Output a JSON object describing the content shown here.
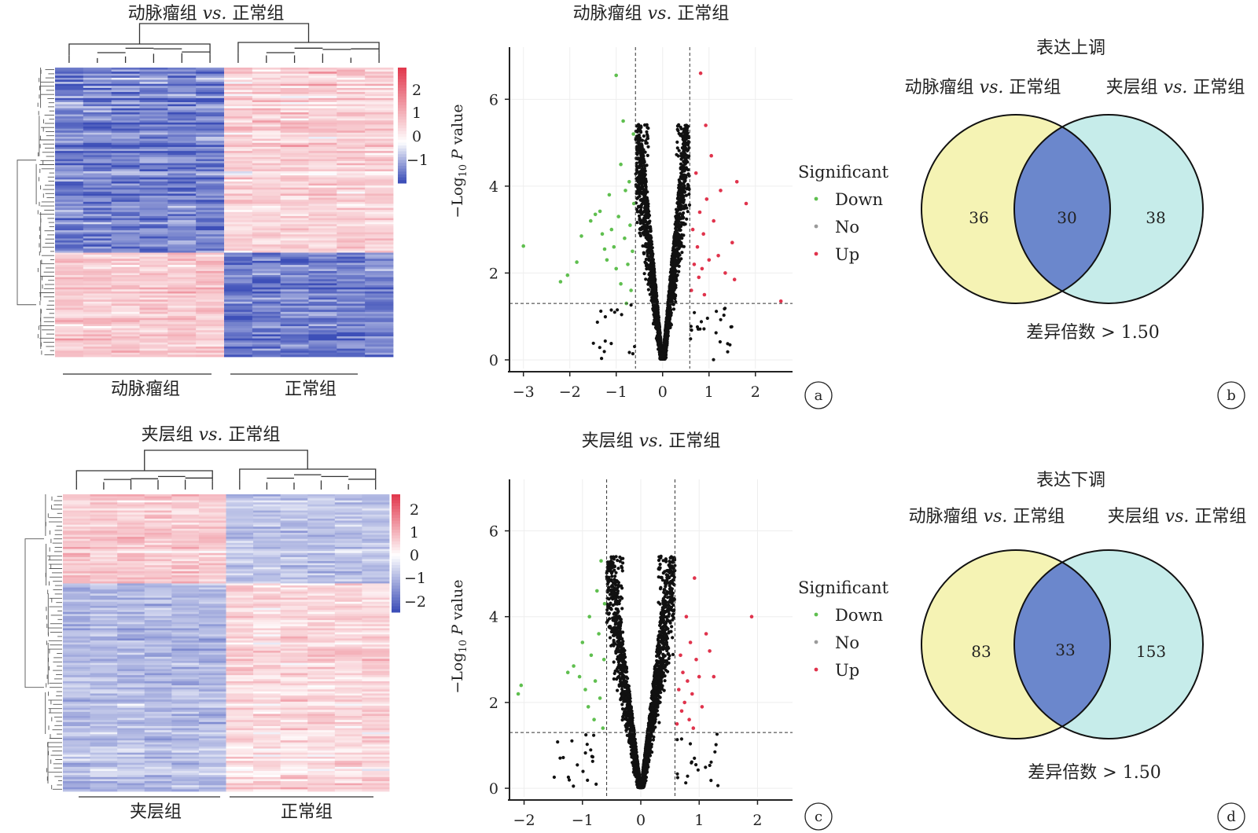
{
  "panels": {
    "a": {
      "letter": "a",
      "heatmap": {
        "title_prefix": "动脉瘤组 ",
        "title_vs": "vs.",
        "title_suffix": " 正常组",
        "colorbar_ticks": [
          "2",
          "1",
          "0",
          "−1"
        ],
        "groups": [
          "动脉瘤组",
          "正常组"
        ]
      },
      "volcano": {
        "title_prefix": "动脉瘤组 ",
        "title_vs": "vs.",
        "title_suffix": " 正常组",
        "x_ticks": [
          "−3",
          "−2",
          "−1",
          "0",
          "1",
          "2"
        ],
        "y_ticks": [
          "0",
          "2",
          "4",
          "6"
        ],
        "ylabel_a": "−Log",
        "ylabel_sub": "10",
        "ylabel_b": " ",
        "ylabel_p": "P",
        "ylabel_c": " value"
      },
      "legend": {
        "title": "Significant",
        "items": [
          "Down",
          "No",
          "Up"
        ]
      }
    },
    "b": {
      "letter": "b",
      "title": "表达上调",
      "left_label_prefix": "动脉瘤组 ",
      "left_label_vs": "vs.",
      "left_label_suffix": " 正常组",
      "right_label_prefix": "夹层组 ",
      "right_label_vs": "vs.",
      "right_label_suffix": " 正常组",
      "left_only": "36",
      "overlap": "30",
      "right_only": "38",
      "caption": "差异倍数 > 1.50"
    },
    "c": {
      "letter": "c",
      "heatmap": {
        "title_prefix": "夹层组 ",
        "title_vs": "vs.",
        "title_suffix": " 正常组",
        "colorbar_ticks": [
          "2",
          "1",
          "0",
          "−1",
          "−2"
        ],
        "groups": [
          "夹层组",
          "正常组"
        ]
      },
      "volcano": {
        "title_prefix": "夹层组 ",
        "title_vs": "vs.",
        "title_suffix": " 正常组",
        "x_ticks": [
          "−2",
          "−1",
          "0",
          "1",
          "2"
        ],
        "y_ticks": [
          "0",
          "2",
          "4",
          "6"
        ],
        "ylabel_a": "−Log",
        "ylabel_sub": "10",
        "ylabel_b": " ",
        "ylabel_p": "P",
        "ylabel_c": " value"
      },
      "legend": {
        "title": "Significant",
        "items": [
          "Down",
          "No",
          "Up"
        ]
      }
    },
    "d": {
      "letter": "d",
      "title": "表达下调",
      "left_label_prefix": "动脉瘤组 ",
      "left_label_vs": "vs.",
      "left_label_suffix": " 正常组",
      "right_label_prefix": "夹层组 ",
      "right_label_vs": "vs.",
      "right_label_suffix": " 正常组",
      "left_only": "83",
      "overlap": "33",
      "right_only": "153",
      "caption": "差异倍数 > 1.50"
    }
  },
  "colors": {
    "down": "#5fbf4f",
    "no": "#111111",
    "up": "#e0334c",
    "heat_high": "#e23a4f",
    "heat_mid": "#ffffff",
    "heat_low": "#3d4fb8",
    "venn_left": "#f5f3b4",
    "venn_right": "#c6ecea",
    "venn_overlap": "#6b87cc"
  },
  "chart_data": [
    {
      "type": "heatmap",
      "panel": "a",
      "title": "动脉瘤组 vs. 正常组",
      "groups": [
        "动脉瘤组",
        "正常组"
      ],
      "samples_per_group": 6,
      "color_range": [
        -1.4,
        2.6
      ],
      "colorbar_ticks": [
        2,
        1,
        0,
        -1
      ],
      "row_blocks": [
        {
          "fraction": 0.64,
          "group_means": [
            -1.0,
            0.6
          ]
        },
        {
          "fraction": 0.36,
          "group_means": [
            0.7,
            -1.0
          ]
        }
      ]
    },
    {
      "type": "scatter",
      "panel": "a",
      "title": "动脉瘤组 vs. 正常组",
      "xlabel": "",
      "ylabel": "−Log10 P value",
      "xlim": [
        -3.3,
        2.8
      ],
      "ylim": [
        -0.2,
        7.2
      ],
      "x_ticks": [
        -3,
        -2,
        -1,
        0,
        1,
        2
      ],
      "y_ticks": [
        0,
        2,
        4,
        6
      ],
      "fold_change_cutoffs": [
        -0.585,
        0.585
      ],
      "p_cutoff": 1.3,
      "legend_title": "Significant",
      "series": [
        {
          "name": "Down",
          "color": "#5fbf4f",
          "points": [
            [
              -3.0,
              2.62
            ],
            [
              -2.2,
              1.8
            ],
            [
              -2.05,
              1.95
            ],
            [
              -1.85,
              2.25
            ],
            [
              -1.75,
              2.85
            ],
            [
              -1.55,
              3.2
            ],
            [
              -1.45,
              3.35
            ],
            [
              -1.35,
              3.42
            ],
            [
              -1.3,
              2.9
            ],
            [
              -1.25,
              2.55
            ],
            [
              -1.2,
              2.3
            ],
            [
              -1.15,
              3.8
            ],
            [
              -1.1,
              3.0
            ],
            [
              -1.05,
              2.6
            ],
            [
              -1.0,
              2.1
            ],
            [
              -1.0,
              6.55
            ],
            [
              -0.95,
              3.3
            ],
            [
              -0.9,
              1.75
            ],
            [
              -0.9,
              4.5
            ],
            [
              -0.85,
              5.5
            ],
            [
              -0.82,
              2.8
            ],
            [
              -0.8,
              3.9
            ],
            [
              -0.78,
              1.3
            ],
            [
              -0.75,
              2.2
            ],
            [
              -0.72,
              4.1
            ],
            [
              -0.7,
              3.1
            ],
            [
              -0.68,
              1.6
            ],
            [
              -0.65,
              2.5
            ],
            [
              -0.63,
              5.2
            ],
            [
              -0.62,
              3.6
            ]
          ]
        },
        {
          "name": "Up",
          "color": "#e0334c",
          "points": [
            [
              0.62,
              1.6
            ],
            [
              0.65,
              3.0
            ],
            [
              0.68,
              2.2
            ],
            [
              0.72,
              4.3
            ],
            [
              0.75,
              2.6
            ],
            [
              0.78,
              1.9
            ],
            [
              0.8,
              3.4
            ],
            [
              0.82,
              6.6
            ],
            [
              0.85,
              2.1
            ],
            [
              0.88,
              2.9
            ],
            [
              0.9,
              1.5
            ],
            [
              0.93,
              5.4
            ],
            [
              0.95,
              3.7
            ],
            [
              1.0,
              2.3
            ],
            [
              1.05,
              4.7
            ],
            [
              1.1,
              3.2
            ],
            [
              1.2,
              2.4
            ],
            [
              1.25,
              3.9
            ],
            [
              1.35,
              2.0
            ],
            [
              1.5,
              2.7
            ],
            [
              1.55,
              1.85
            ],
            [
              1.6,
              4.1
            ],
            [
              1.8,
              3.6
            ],
            [
              2.55,
              1.35
            ]
          ]
        },
        {
          "name": "No",
          "color": "#111111",
          "note": "thousands of non-significant genes forming the central V shape (|log2FC| < 0.585 or P > 0.05)"
        }
      ]
    },
    {
      "type": "venn",
      "panel": "b",
      "title": "表达上调",
      "sets": [
        "动脉瘤组 vs. 正常组",
        "夹层组 vs. 正常组"
      ],
      "left_only": 36,
      "overlap": 30,
      "right_only": 38,
      "caption": "差异倍数 > 1.50"
    },
    {
      "type": "heatmap",
      "panel": "c",
      "title": "夹层组 vs. 正常组",
      "groups": [
        "夹层组",
        "正常组"
      ],
      "samples_per_group": 6,
      "color_range": [
        -2.4,
        2.6
      ],
      "colorbar_ticks": [
        2,
        1,
        0,
        -1,
        -2
      ],
      "row_blocks": [
        {
          "fraction": 0.3,
          "group_means": [
            0.7,
            -0.8
          ]
        },
        {
          "fraction": 0.7,
          "group_means": [
            -0.9,
            0.5
          ]
        }
      ]
    },
    {
      "type": "scatter",
      "panel": "c",
      "title": "夹层组 vs. 正常组",
      "xlabel": "",
      "ylabel": "−Log10 P value",
      "xlim": [
        -2.25,
        2.6
      ],
      "ylim": [
        -0.2,
        7.2
      ],
      "x_ticks": [
        -2,
        -1,
        0,
        1,
        2
      ],
      "y_ticks": [
        0,
        2,
        4,
        6
      ],
      "fold_change_cutoffs": [
        -0.585,
        0.585
      ],
      "p_cutoff": 1.3,
      "legend_title": "Significant",
      "series": [
        {
          "name": "Down",
          "color": "#5fbf4f",
          "points": [
            [
              -2.05,
              2.4
            ],
            [
              -2.1,
              2.2
            ],
            [
              -1.25,
              2.7
            ],
            [
              -1.15,
              2.85
            ],
            [
              -1.05,
              2.6
            ],
            [
              -1.0,
              3.4
            ],
            [
              -0.95,
              2.3
            ],
            [
              -0.9,
              1.9
            ],
            [
              -0.88,
              4.0
            ],
            [
              -0.85,
              3.1
            ],
            [
              -0.8,
              1.6
            ],
            [
              -0.78,
              2.5
            ],
            [
              -0.75,
              4.6
            ],
            [
              -0.72,
              3.6
            ],
            [
              -0.7,
              2.1
            ],
            [
              -0.68,
              5.3
            ],
            [
              -0.65,
              1.4
            ],
            [
              -0.63,
              3.0
            ],
            [
              -0.62,
              4.3
            ]
          ]
        },
        {
          "name": "Up",
          "color": "#e0334c",
          "points": [
            [
              0.62,
              1.5
            ],
            [
              0.65,
              2.3
            ],
            [
              0.68,
              3.1
            ],
            [
              0.7,
              1.8
            ],
            [
              0.72,
              2.7
            ],
            [
              0.75,
              2.0
            ],
            [
              0.78,
              4.0
            ],
            [
              0.8,
              2.5
            ],
            [
              0.83,
              1.6
            ],
            [
              0.85,
              3.4
            ],
            [
              0.88,
              2.2
            ],
            [
              0.9,
              1.4
            ],
            [
              0.92,
              4.9
            ],
            [
              0.95,
              3.0
            ],
            [
              1.0,
              2.6
            ],
            [
              1.05,
              1.9
            ],
            [
              1.12,
              3.6
            ],
            [
              1.18,
              3.2
            ],
            [
              1.25,
              2.6
            ],
            [
              1.9,
              4.0
            ]
          ]
        },
        {
          "name": "No",
          "color": "#111111",
          "note": "thousands of non-significant genes forming the central V shape (|log2FC| < 0.585 or P > 0.05)"
        }
      ]
    },
    {
      "type": "venn",
      "panel": "d",
      "title": "表达下调",
      "sets": [
        "动脉瘤组 vs. 正常组",
        "夹层组 vs. 正常组"
      ],
      "left_only": 83,
      "overlap": 33,
      "right_only": 153,
      "caption": "差异倍数 > 1.50"
    }
  ]
}
